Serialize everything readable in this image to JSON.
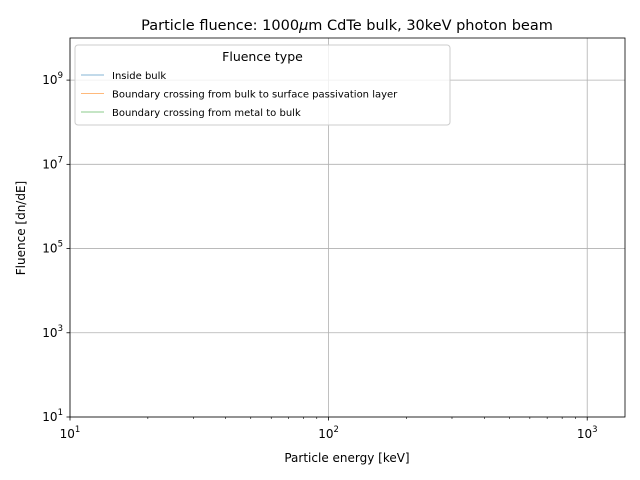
{
  "chart_data": {
    "type": "line",
    "title_prefix": "Particle fluence: 1000",
    "title_mu": "μ",
    "title_suffix": "m CdTe bulk, 30keV photon beam",
    "xlabel": "Particle energy [keV]",
    "ylabel": "Fluence [dn/dE]",
    "x_scale": "log",
    "y_scale": "log",
    "xlim": [
      10,
      1400
    ],
    "ylim": [
      10,
      10000000000
    ],
    "grid": true,
    "x_ticks": [
      {
        "base": "10",
        "exp": "1"
      },
      {
        "base": "10",
        "exp": "2"
      },
      {
        "base": "10",
        "exp": "3"
      }
    ],
    "y_ticks": [
      {
        "base": "10",
        "exp": "1"
      },
      {
        "base": "10",
        "exp": "3"
      },
      {
        "base": "10",
        "exp": "5"
      },
      {
        "base": "10",
        "exp": "7"
      },
      {
        "base": "10",
        "exp": "9"
      }
    ],
    "legend": {
      "title": "Fluence type",
      "placement": "upper-left",
      "entries": [
        {
          "name": "Inside bulk",
          "color": "#1f77b4"
        },
        {
          "name": "Boundary crossing from bulk to surface passivation layer",
          "color": "#ff7f0e"
        },
        {
          "name": "Boundary crossing from metal to bulk",
          "color": "#2ca02c"
        }
      ]
    },
    "series": [
      {
        "name": "Inside bulk",
        "color": "#1f77b4",
        "points": []
      },
      {
        "name": "Boundary crossing from bulk to surface passivation layer",
        "color": "#ff7f0e",
        "points": []
      },
      {
        "name": "Boundary crossing from metal to bulk",
        "color": "#2ca02c",
        "points": []
      }
    ]
  }
}
